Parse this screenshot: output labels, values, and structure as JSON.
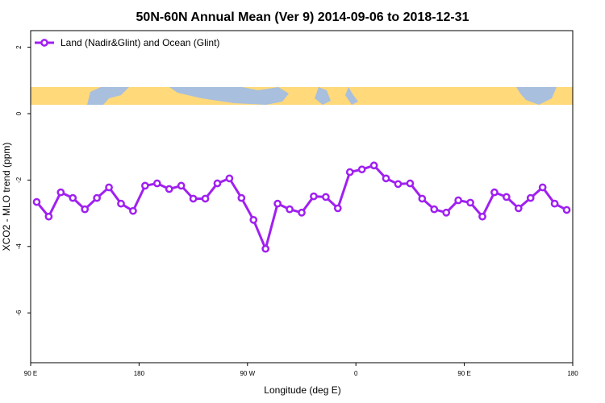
{
  "chart_data": {
    "type": "line",
    "title": "50N-60N Annual Mean (Ver 9)   2014-09-06 to 2018-12-31",
    "x_label": "Longitude (deg E)",
    "y_label": "XCO2 - MLO trend (ppm)",
    "x": [
      95,
      105,
      115,
      125,
      135,
      145,
      155,
      165,
      175,
      185,
      195,
      205,
      215,
      225,
      235,
      245,
      255,
      265,
      275,
      285,
      295,
      305,
      315,
      325,
      335,
      345,
      355,
      365,
      375,
      385,
      395,
      405,
      415,
      425,
      435,
      445,
      455,
      465,
      475,
      485,
      495,
      505,
      515,
      525,
      535
    ],
    "series": [
      {
        "name": "Land (Nadir&Glint) and Ocean (Glint)",
        "color": "#a020f0",
        "values": [
          -2.66,
          -3.1,
          -2.37,
          -2.54,
          -2.88,
          -2.54,
          -2.22,
          -2.71,
          -2.93,
          -2.17,
          -2.1,
          -2.27,
          -2.17,
          -2.56,
          -2.56,
          -2.1,
          -1.95,
          -2.54,
          -3.2,
          -4.07,
          -2.71,
          -2.88,
          -2.98,
          -2.49,
          -2.51,
          -2.85,
          -1.76,
          -1.68,
          -1.56,
          -1.95,
          -2.12,
          -2.1,
          -2.56,
          -2.88,
          -2.98,
          -2.61,
          -2.68,
          -3.1,
          -2.37,
          -2.51,
          -2.85,
          -2.54,
          -2.22,
          -2.71,
          -2.9
        ]
      }
    ],
    "xlim": [
      90,
      540
    ],
    "xticks": [
      {
        "value": 90,
        "label": "90 E"
      },
      {
        "value": 180,
        "label": "180"
      },
      {
        "value": 270,
        "label": "90 W"
      },
      {
        "value": 360,
        "label": "0"
      },
      {
        "value": 450,
        "label": "90 E"
      },
      {
        "value": 540,
        "label": "180"
      }
    ],
    "ylim": [
      -7.5,
      2.5
    ],
    "yticks": [
      2,
      0,
      -2,
      -4,
      -6
    ],
    "legend": "top-left"
  }
}
